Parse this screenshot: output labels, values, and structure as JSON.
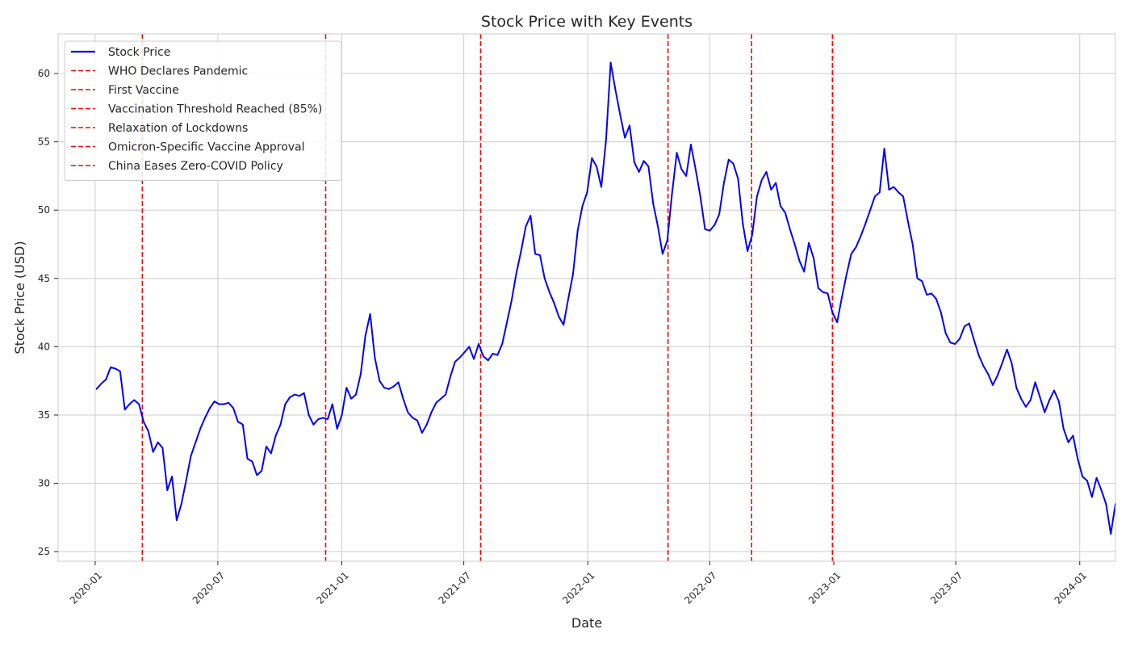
{
  "chart_data": {
    "type": "line",
    "title": "Stock Price with Key Events",
    "xlabel": "Date",
    "ylabel": "Stock Price (USD)",
    "grid": true,
    "legend_position": "top-left",
    "xlim": [
      "2019-11-07",
      "2024-02-23"
    ],
    "ylim": [
      24.3,
      62.9
    ],
    "x_ticks": [
      "2020-01",
      "2020-07",
      "2021-01",
      "2021-07",
      "2022-01",
      "2022-07",
      "2023-01",
      "2023-07",
      "2024-01"
    ],
    "y_ticks": [
      25,
      30,
      35,
      40,
      45,
      50,
      55,
      60
    ],
    "series": [
      {
        "name": "Stock Price",
        "color": "#0000ff",
        "style": "solid",
        "points": [
          [
            "2020-01-03",
            36.9
          ],
          [
            "2020-01-10",
            37.3
          ],
          [
            "2020-01-17",
            37.6
          ],
          [
            "2020-01-24",
            38.5
          ],
          [
            "2020-01-31",
            38.4
          ],
          [
            "2020-02-07",
            38.2
          ],
          [
            "2020-02-14",
            35.4
          ],
          [
            "2020-02-21",
            35.8
          ],
          [
            "2020-02-28",
            36.1
          ],
          [
            "2020-03-06",
            35.8
          ],
          [
            "2020-03-13",
            34.5
          ],
          [
            "2020-03-20",
            33.8
          ],
          [
            "2020-03-27",
            32.3
          ],
          [
            "2020-04-03",
            33.0
          ],
          [
            "2020-04-10",
            32.6
          ],
          [
            "2020-04-17",
            29.5
          ],
          [
            "2020-04-24",
            30.5
          ],
          [
            "2020-05-01",
            27.3
          ],
          [
            "2020-05-08",
            28.5
          ],
          [
            "2020-05-15",
            30.2
          ],
          [
            "2020-05-22",
            32.0
          ],
          [
            "2020-05-29",
            33.0
          ],
          [
            "2020-06-05",
            34.0
          ],
          [
            "2020-06-12",
            34.8
          ],
          [
            "2020-06-19",
            35.5
          ],
          [
            "2020-06-26",
            36.0
          ],
          [
            "2020-07-03",
            35.8
          ],
          [
            "2020-07-10",
            35.8
          ],
          [
            "2020-07-17",
            35.9
          ],
          [
            "2020-07-24",
            35.5
          ],
          [
            "2020-07-31",
            34.5
          ],
          [
            "2020-08-07",
            34.3
          ],
          [
            "2020-08-14",
            31.8
          ],
          [
            "2020-08-21",
            31.6
          ],
          [
            "2020-08-28",
            30.6
          ],
          [
            "2020-09-04",
            30.9
          ],
          [
            "2020-09-11",
            32.7
          ],
          [
            "2020-09-18",
            32.2
          ],
          [
            "2020-09-25",
            33.5
          ],
          [
            "2020-10-02",
            34.3
          ],
          [
            "2020-10-09",
            35.8
          ],
          [
            "2020-10-16",
            36.3
          ],
          [
            "2020-10-23",
            36.5
          ],
          [
            "2020-10-30",
            36.4
          ],
          [
            "2020-11-06",
            36.6
          ],
          [
            "2020-11-13",
            35.0
          ],
          [
            "2020-11-20",
            34.3
          ],
          [
            "2020-11-27",
            34.7
          ],
          [
            "2020-12-04",
            34.8
          ],
          [
            "2020-12-11",
            34.7
          ],
          [
            "2020-12-18",
            35.8
          ],
          [
            "2020-12-25",
            34.0
          ],
          [
            "2021-01-01",
            35.0
          ],
          [
            "2021-01-08",
            37.0
          ],
          [
            "2021-01-15",
            36.2
          ],
          [
            "2021-01-22",
            36.5
          ],
          [
            "2021-01-29",
            38.0
          ],
          [
            "2021-02-05",
            40.8
          ],
          [
            "2021-02-12",
            42.4
          ],
          [
            "2021-02-19",
            39.2
          ],
          [
            "2021-02-26",
            37.5
          ],
          [
            "2021-03-05",
            37.0
          ],
          [
            "2021-03-12",
            36.9
          ],
          [
            "2021-03-19",
            37.1
          ],
          [
            "2021-03-26",
            37.4
          ],
          [
            "2021-04-02",
            36.2
          ],
          [
            "2021-04-09",
            35.2
          ],
          [
            "2021-04-16",
            34.8
          ],
          [
            "2021-04-23",
            34.6
          ],
          [
            "2021-04-30",
            33.7
          ],
          [
            "2021-05-07",
            34.3
          ],
          [
            "2021-05-14",
            35.2
          ],
          [
            "2021-05-21",
            35.9
          ],
          [
            "2021-05-28",
            36.2
          ],
          [
            "2021-06-04",
            36.5
          ],
          [
            "2021-06-11",
            37.8
          ],
          [
            "2021-06-18",
            38.9
          ],
          [
            "2021-06-25",
            39.2
          ],
          [
            "2021-07-02",
            39.6
          ],
          [
            "2021-07-09",
            40.0
          ],
          [
            "2021-07-16",
            39.1
          ],
          [
            "2021-07-23",
            40.2
          ],
          [
            "2021-07-30",
            39.3
          ],
          [
            "2021-08-06",
            39.0
          ],
          [
            "2021-08-13",
            39.5
          ],
          [
            "2021-08-20",
            39.4
          ],
          [
            "2021-08-27",
            40.2
          ],
          [
            "2021-09-03",
            41.8
          ],
          [
            "2021-09-10",
            43.4
          ],
          [
            "2021-09-17",
            45.4
          ],
          [
            "2021-09-24",
            47.0
          ],
          [
            "2021-10-01",
            48.8
          ],
          [
            "2021-10-08",
            49.6
          ],
          [
            "2021-10-15",
            46.8
          ],
          [
            "2021-10-22",
            46.7
          ],
          [
            "2021-10-29",
            45.0
          ],
          [
            "2021-11-05",
            44.0
          ],
          [
            "2021-11-12",
            43.2
          ],
          [
            "2021-11-19",
            42.2
          ],
          [
            "2021-11-26",
            41.6
          ],
          [
            "2021-12-03",
            43.5
          ],
          [
            "2021-12-10",
            45.3
          ],
          [
            "2021-12-17",
            48.5
          ],
          [
            "2021-12-24",
            50.3
          ],
          [
            "2021-12-31",
            51.3
          ],
          [
            "2022-01-07",
            53.8
          ],
          [
            "2022-01-14",
            53.2
          ],
          [
            "2022-01-21",
            51.7
          ],
          [
            "2022-01-28",
            55.1
          ],
          [
            "2022-02-04",
            60.8
          ],
          [
            "2022-02-11",
            58.8
          ],
          [
            "2022-02-18",
            57.0
          ],
          [
            "2022-02-25",
            55.3
          ],
          [
            "2022-03-04",
            56.2
          ],
          [
            "2022-03-11",
            53.5
          ],
          [
            "2022-03-18",
            52.8
          ],
          [
            "2022-03-25",
            53.6
          ],
          [
            "2022-04-01",
            53.2
          ],
          [
            "2022-04-08",
            50.5
          ],
          [
            "2022-04-15",
            48.8
          ],
          [
            "2022-04-22",
            46.8
          ],
          [
            "2022-04-29",
            47.8
          ],
          [
            "2022-05-06",
            51.2
          ],
          [
            "2022-05-13",
            54.2
          ],
          [
            "2022-05-20",
            53.0
          ],
          [
            "2022-05-27",
            52.5
          ],
          [
            "2022-06-03",
            54.8
          ],
          [
            "2022-06-10",
            53.0
          ],
          [
            "2022-06-17",
            51.0
          ],
          [
            "2022-06-24",
            48.6
          ],
          [
            "2022-07-01",
            48.5
          ],
          [
            "2022-07-08",
            48.9
          ],
          [
            "2022-07-15",
            49.7
          ],
          [
            "2022-07-22",
            52.0
          ],
          [
            "2022-07-29",
            53.7
          ],
          [
            "2022-08-05",
            53.4
          ],
          [
            "2022-08-12",
            52.3
          ],
          [
            "2022-08-19",
            49.0
          ],
          [
            "2022-08-26",
            47.0
          ],
          [
            "2022-09-02",
            48.2
          ],
          [
            "2022-09-09",
            51.0
          ],
          [
            "2022-09-16",
            52.2
          ],
          [
            "2022-09-23",
            52.8
          ],
          [
            "2022-09-30",
            51.5
          ],
          [
            "2022-10-07",
            52.0
          ],
          [
            "2022-10-14",
            50.3
          ],
          [
            "2022-10-21",
            49.8
          ],
          [
            "2022-10-28",
            48.6
          ],
          [
            "2022-11-04",
            47.5
          ],
          [
            "2022-11-11",
            46.3
          ],
          [
            "2022-11-18",
            45.5
          ],
          [
            "2022-11-25",
            47.6
          ],
          [
            "2022-12-02",
            46.5
          ],
          [
            "2022-12-09",
            44.3
          ],
          [
            "2022-12-16",
            44.0
          ],
          [
            "2022-12-23",
            43.9
          ],
          [
            "2022-12-30",
            42.5
          ],
          [
            "2023-01-06",
            41.8
          ],
          [
            "2023-01-13",
            43.6
          ],
          [
            "2023-01-20",
            45.3
          ],
          [
            "2023-01-27",
            46.8
          ],
          [
            "2023-02-03",
            47.3
          ],
          [
            "2023-02-10",
            48.1
          ],
          [
            "2023-02-17",
            49.0
          ],
          [
            "2023-02-24",
            50.0
          ],
          [
            "2023-03-03",
            51.0
          ],
          [
            "2023-03-10",
            51.3
          ],
          [
            "2023-03-17",
            54.5
          ],
          [
            "2023-03-24",
            51.5
          ],
          [
            "2023-03-31",
            51.7
          ],
          [
            "2023-04-07",
            51.3
          ],
          [
            "2023-04-14",
            51.0
          ],
          [
            "2023-04-21",
            49.2
          ],
          [
            "2023-04-28",
            47.5
          ],
          [
            "2023-05-05",
            45.0
          ],
          [
            "2023-05-12",
            44.8
          ],
          [
            "2023-05-19",
            43.8
          ],
          [
            "2023-05-26",
            43.9
          ],
          [
            "2023-06-02",
            43.5
          ],
          [
            "2023-06-09",
            42.5
          ],
          [
            "2023-06-16",
            41.0
          ],
          [
            "2023-06-23",
            40.3
          ],
          [
            "2023-06-30",
            40.2
          ],
          [
            "2023-07-07",
            40.6
          ],
          [
            "2023-07-14",
            41.5
          ],
          [
            "2023-07-21",
            41.7
          ],
          [
            "2023-07-28",
            40.5
          ],
          [
            "2023-08-04",
            39.4
          ],
          [
            "2023-08-11",
            38.6
          ],
          [
            "2023-08-18",
            38.0
          ],
          [
            "2023-08-25",
            37.2
          ],
          [
            "2023-09-01",
            37.9
          ],
          [
            "2023-09-08",
            38.8
          ],
          [
            "2023-09-15",
            39.8
          ],
          [
            "2023-09-22",
            38.8
          ],
          [
            "2023-09-29",
            37.0
          ],
          [
            "2023-10-06",
            36.2
          ],
          [
            "2023-10-13",
            35.6
          ],
          [
            "2023-10-20",
            36.1
          ],
          [
            "2023-10-27",
            37.4
          ],
          [
            "2023-11-03",
            36.3
          ],
          [
            "2023-11-10",
            35.2
          ],
          [
            "2023-11-17",
            36.1
          ],
          [
            "2023-11-24",
            36.8
          ],
          [
            "2023-12-01",
            36.0
          ],
          [
            "2023-12-08",
            34.0
          ],
          [
            "2023-12-15",
            33.0
          ],
          [
            "2023-12-22",
            33.5
          ],
          [
            "2023-12-29",
            31.8
          ],
          [
            "2024-01-05",
            30.5
          ],
          [
            "2024-01-12",
            30.2
          ],
          [
            "2024-01-19",
            29.0
          ],
          [
            "2024-01-26",
            30.4
          ],
          [
            "2024-02-02",
            29.5
          ],
          [
            "2024-02-09",
            28.5
          ],
          [
            "2024-02-16",
            26.3
          ],
          [
            "2024-02-23",
            28.5
          ]
        ]
      }
    ],
    "events": [
      {
        "name": "WHO Declares Pandemic",
        "date": "2020-03-11",
        "color": "#ff0000",
        "style": "dashed"
      },
      {
        "name": "First Vaccine",
        "date": "2020-12-08",
        "color": "#ff0000",
        "style": "dashed"
      },
      {
        "name": "Vaccination Threshold Reached (85%)",
        "date": "2021-07-26",
        "color": "#ff0000",
        "style": "dashed"
      },
      {
        "name": "Relaxation of Lockdowns",
        "date": "2022-04-30",
        "color": "#ff0000",
        "style": "dashed"
      },
      {
        "name": "Omicron-Specific Vaccine Approval",
        "date": "2022-09-01",
        "color": "#ff0000",
        "style": "dashed"
      },
      {
        "name": "China Eases Zero-COVID Policy",
        "date": "2022-12-30",
        "color": "#ff0000",
        "style": "dashed"
      }
    ]
  }
}
